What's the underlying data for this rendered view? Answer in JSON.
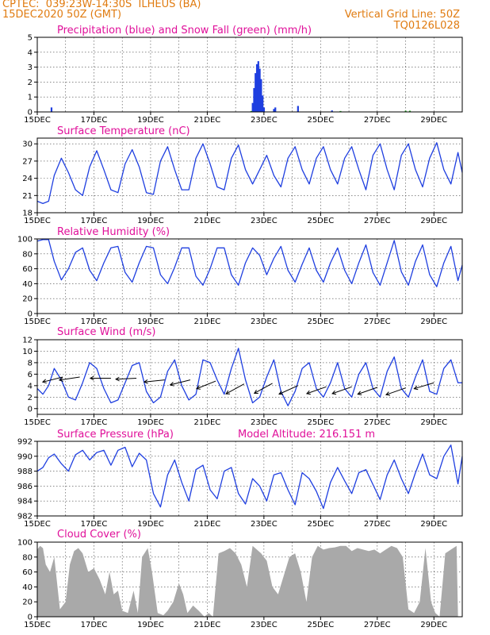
{
  "header": {
    "line1_left": "CPTEC:  039:23W-14:30S  ILHEUS (BA)",
    "line2_left": "15DEC2020 50Z (GMT)",
    "line2_right": "Vertical Grid Line: 50Z",
    "line3_right": "TQ0126L028"
  },
  "colors": {
    "header": "#e07b10",
    "titles": "#e0109a",
    "line": "#1f3fe0",
    "snow": "#22aa22",
    "cloud": "#a9a9a9",
    "arrow": "#000000"
  },
  "chart_data": [
    {
      "id": "precip",
      "type": "bar",
      "title": "Precipitation (blue) and Snow Fall (green) (mm/h)",
      "ylim": [
        0,
        5
      ],
      "yticks": [
        "0",
        "1",
        "2",
        "3",
        "4",
        "5"
      ],
      "xlim": [
        15,
        30
      ],
      "xticks": [
        "15DEC",
        "17DEC",
        "19DEC",
        "21DEC",
        "23DEC",
        "25DEC",
        "27DEC",
        "29DEC"
      ],
      "series": [
        {
          "name": "Precipitation",
          "color": "#1f3fe0",
          "x": [
            15.5,
            22.6,
            22.65,
            22.7,
            22.75,
            22.8,
            22.85,
            22.9,
            22.95,
            23.0,
            23.35,
            23.4,
            24.2,
            25.4
          ],
          "values": [
            0.3,
            0.6,
            1.6,
            2.6,
            3.2,
            3.4,
            2.9,
            2.2,
            1.1,
            0.3,
            0.2,
            0.3,
            0.4,
            0.1
          ]
        },
        {
          "name": "Snow Fall",
          "color": "#22aa22",
          "x": [
            22.55,
            25.7,
            28.0,
            28.15
          ],
          "values": [
            0.06,
            0.06,
            0.08,
            0.08
          ]
        }
      ]
    },
    {
      "id": "temp",
      "type": "line",
      "title": "Surface Temperature (nC)",
      "ylim": [
        18,
        31
      ],
      "yticks": [
        "18",
        "21",
        "24",
        "27",
        "30"
      ],
      "ytick_values": [
        18,
        21,
        24,
        27,
        30
      ],
      "xlim": [
        15,
        30
      ],
      "xticks": [
        "15DEC",
        "17DEC",
        "19DEC",
        "21DEC",
        "23DEC",
        "25DEC",
        "27DEC",
        "29DEC"
      ],
      "x": [
        15.0,
        15.2,
        15.4,
        15.6,
        15.85,
        16.1,
        16.35,
        16.6,
        16.85,
        17.1,
        17.35,
        17.6,
        17.85,
        18.1,
        18.35,
        18.6,
        18.85,
        19.1,
        19.35,
        19.6,
        19.85,
        20.1,
        20.35,
        20.6,
        20.85,
        21.1,
        21.35,
        21.6,
        21.85,
        22.1,
        22.35,
        22.6,
        22.85,
        23.1,
        23.35,
        23.6,
        23.85,
        24.1,
        24.35,
        24.6,
        24.85,
        25.1,
        25.35,
        25.6,
        25.85,
        26.1,
        26.35,
        26.6,
        26.85,
        27.1,
        27.35,
        27.6,
        27.85,
        28.1,
        28.35,
        28.6,
        28.85,
        29.1,
        29.35,
        29.6,
        29.85,
        30.0
      ],
      "series": [
        {
          "values": [
            20,
            19.6,
            20,
            24.5,
            27.5,
            25,
            22,
            21,
            26,
            28.8,
            25.5,
            22,
            21.5,
            26.5,
            29,
            26,
            21.5,
            21.2,
            27,
            29.5,
            25.5,
            22,
            22,
            27.5,
            30,
            26.5,
            22.5,
            22,
            27.5,
            29.8,
            25.5,
            23,
            25.5,
            28,
            24.5,
            22.5,
            27.5,
            29.5,
            25.5,
            23,
            27.5,
            29.5,
            25.5,
            23,
            27.5,
            29.5,
            25.5,
            22,
            28,
            30,
            25.5,
            22,
            28,
            30,
            25.5,
            22.5,
            27.5,
            30.2,
            25.5,
            23,
            28.5,
            25
          ]
        }
      ]
    },
    {
      "id": "rh",
      "type": "line",
      "title": "Relative Humidity (%)",
      "ylim": [
        0,
        100
      ],
      "yticks": [
        "0",
        "20",
        "40",
        "60",
        "80",
        "100"
      ],
      "ytick_values": [
        0,
        20,
        40,
        60,
        80,
        100
      ],
      "xlim": [
        15,
        30
      ],
      "xticks": [
        "15DEC",
        "17DEC",
        "19DEC",
        "21DEC",
        "23DEC",
        "25DEC",
        "27DEC",
        "29DEC"
      ],
      "x": [
        15.0,
        15.2,
        15.4,
        15.6,
        15.85,
        16.1,
        16.35,
        16.6,
        16.85,
        17.1,
        17.35,
        17.6,
        17.85,
        18.1,
        18.35,
        18.6,
        18.85,
        19.1,
        19.35,
        19.6,
        19.85,
        20.1,
        20.35,
        20.6,
        20.85,
        21.1,
        21.35,
        21.6,
        21.85,
        22.1,
        22.35,
        22.6,
        22.85,
        23.1,
        23.35,
        23.6,
        23.85,
        24.1,
        24.35,
        24.6,
        24.85,
        25.1,
        25.35,
        25.6,
        25.85,
        26.1,
        26.35,
        26.6,
        26.85,
        27.1,
        27.35,
        27.6,
        27.85,
        28.1,
        28.35,
        28.6,
        28.85,
        29.1,
        29.35,
        29.6,
        29.85,
        30.0
      ],
      "series": [
        {
          "values": [
            97,
            99,
            99,
            70,
            45,
            60,
            82,
            88,
            58,
            44,
            68,
            88,
            90,
            55,
            42,
            68,
            90,
            88,
            52,
            40,
            62,
            88,
            88,
            50,
            38,
            60,
            88,
            88,
            52,
            38,
            68,
            88,
            78,
            52,
            74,
            90,
            58,
            42,
            66,
            88,
            58,
            42,
            68,
            88,
            58,
            40,
            68,
            92,
            55,
            38,
            68,
            98,
            56,
            38,
            70,
            92,
            52,
            36,
            68,
            90,
            44,
            65
          ]
        }
      ]
    },
    {
      "id": "wind",
      "type": "line",
      "title": "Surface Wind (m/s)",
      "ylim": [
        -1,
        12
      ],
      "yticks": [
        "0",
        "2",
        "4",
        "6",
        "8",
        "10",
        "12"
      ],
      "ytick_values": [
        0,
        2,
        4,
        6,
        8,
        10,
        12
      ],
      "xlim": [
        15,
        30
      ],
      "xticks": [
        "15DEC",
        "17DEC",
        "19DEC",
        "21DEC",
        "23DEC",
        "25DEC",
        "27DEC",
        "29DEC"
      ],
      "x": [
        15.0,
        15.2,
        15.4,
        15.6,
        15.85,
        16.1,
        16.35,
        16.6,
        16.85,
        17.1,
        17.35,
        17.6,
        17.85,
        18.1,
        18.35,
        18.6,
        18.85,
        19.1,
        19.35,
        19.6,
        19.85,
        20.1,
        20.35,
        20.6,
        20.85,
        21.1,
        21.35,
        21.6,
        21.85,
        22.1,
        22.35,
        22.6,
        22.85,
        23.1,
        23.35,
        23.6,
        23.85,
        24.1,
        24.35,
        24.6,
        24.85,
        25.1,
        25.35,
        25.6,
        25.85,
        26.1,
        26.35,
        26.6,
        26.85,
        27.1,
        27.35,
        27.6,
        27.85,
        28.1,
        28.35,
        28.6,
        28.85,
        29.1,
        29.35,
        29.6,
        29.85,
        30.0
      ],
      "series": [
        {
          "values": [
            3.5,
            2.5,
            4.0,
            7.0,
            5.0,
            2.0,
            1.5,
            4.5,
            8.0,
            7.0,
            3.5,
            1.0,
            1.5,
            4.5,
            7.5,
            8.0,
            3.0,
            1.0,
            2.0,
            6.5,
            8.5,
            4.0,
            1.5,
            2.5,
            8.5,
            8.0,
            5.0,
            2.5,
            7.0,
            10.5,
            5.0,
            1.0,
            2.0,
            5.5,
            8.5,
            3.0,
            0.5,
            3.0,
            7.0,
            8.0,
            3.5,
            2.0,
            4.5,
            8.0,
            3.5,
            2.0,
            6.0,
            8.0,
            3.5,
            2.0,
            6.5,
            9.0,
            3.5,
            2.0,
            5.5,
            8.5,
            3.0,
            2.5,
            7.0,
            8.5,
            4.5,
            4.5
          ]
        }
      ],
      "arrows": [
        {
          "x": 15.9,
          "y": 5.5,
          "dx": -1,
          "dy": -0.25
        },
        {
          "x": 16.5,
          "y": 5.5,
          "dx": -1,
          "dy": -0.15
        },
        {
          "x": 17.6,
          "y": 5.3,
          "dx": -1,
          "dy": 0.0
        },
        {
          "x": 18.5,
          "y": 5.3,
          "dx": -1,
          "dy": -0.05
        },
        {
          "x": 19.5,
          "y": 5.0,
          "dx": -1,
          "dy": -0.1
        },
        {
          "x": 20.4,
          "y": 5.0,
          "dx": -1,
          "dy": -0.25
        },
        {
          "x": 21.3,
          "y": 4.8,
          "dx": -1,
          "dy": -0.4
        },
        {
          "x": 22.3,
          "y": 4.3,
          "dx": -1,
          "dy": -0.55
        },
        {
          "x": 23.3,
          "y": 4.4,
          "dx": -1,
          "dy": -0.55
        },
        {
          "x": 24.2,
          "y": 4.0,
          "dx": -1,
          "dy": -0.45
        },
        {
          "x": 25.2,
          "y": 3.8,
          "dx": -1,
          "dy": -0.35
        },
        {
          "x": 26.1,
          "y": 3.8,
          "dx": -1,
          "dy": -0.35
        },
        {
          "x": 27.0,
          "y": 3.7,
          "dx": -1,
          "dy": -0.35
        },
        {
          "x": 28.0,
          "y": 3.6,
          "dx": -1,
          "dy": -0.35
        },
        {
          "x": 29.0,
          "y": 4.5,
          "dx": -1,
          "dy": -0.3
        }
      ]
    },
    {
      "id": "pres",
      "type": "line",
      "title": "Surface Pressure (hPa)",
      "subtitle": "Model Altitude: 216.151 m",
      "ylim": [
        982,
        992
      ],
      "yticks": [
        "982",
        "984",
        "986",
        "988",
        "990",
        "992"
      ],
      "ytick_values": [
        982,
        984,
        986,
        988,
        990,
        992
      ],
      "xlim": [
        15,
        30
      ],
      "xticks": [
        "15DEC",
        "17DEC",
        "19DEC",
        "21DEC",
        "23DEC",
        "25DEC",
        "27DEC",
        "29DEC"
      ],
      "x": [
        15.0,
        15.2,
        15.4,
        15.6,
        15.85,
        16.1,
        16.35,
        16.6,
        16.85,
        17.1,
        17.35,
        17.6,
        17.85,
        18.1,
        18.35,
        18.6,
        18.85,
        19.1,
        19.35,
        19.6,
        19.85,
        20.1,
        20.35,
        20.6,
        20.85,
        21.1,
        21.35,
        21.6,
        21.85,
        22.1,
        22.35,
        22.6,
        22.85,
        23.1,
        23.35,
        23.6,
        23.85,
        24.1,
        24.35,
        24.6,
        24.85,
        25.1,
        25.35,
        25.6,
        25.85,
        26.1,
        26.35,
        26.6,
        26.85,
        27.1,
        27.35,
        27.6,
        27.85,
        28.1,
        28.35,
        28.6,
        28.85,
        29.1,
        29.35,
        29.6,
        29.85,
        30.0
      ],
      "series": [
        {
          "values": [
            988,
            988.5,
            989.8,
            990.3,
            989,
            988,
            990.2,
            990.8,
            989.5,
            990.5,
            990.8,
            988.8,
            990.8,
            991.2,
            988.6,
            990.4,
            989.5,
            985,
            983.2,
            987.5,
            989.5,
            986.5,
            984,
            988.2,
            988.8,
            985.5,
            984.3,
            988,
            988.5,
            985,
            983.6,
            987,
            986,
            984,
            987.5,
            987.8,
            985.5,
            983.5,
            987.8,
            987,
            985.3,
            983,
            986.5,
            988.5,
            986.7,
            985,
            987.8,
            988.2,
            986.2,
            984.2,
            987.5,
            989.5,
            987,
            985,
            987.8,
            990.3,
            987.5,
            987,
            990,
            991.5,
            986.3,
            990
          ]
        }
      ]
    },
    {
      "id": "cloud",
      "type": "area",
      "title": "Cloud Cover (%)",
      "ylim": [
        0,
        100
      ],
      "yticks": [
        "0",
        "20",
        "40",
        "60",
        "80",
        "100"
      ],
      "ytick_values": [
        0,
        20,
        40,
        60,
        80,
        100
      ],
      "xlim": [
        15,
        30
      ],
      "xticks": [
        "15DEC",
        "17DEC",
        "19DEC",
        "21DEC",
        "23DEC",
        "25DEC",
        "27DEC",
        "29DEC"
      ],
      "x": [
        15.0,
        15.1,
        15.2,
        15.3,
        15.45,
        15.6,
        15.8,
        16.0,
        16.15,
        16.3,
        16.45,
        16.6,
        16.8,
        17.0,
        17.2,
        17.4,
        17.55,
        17.7,
        17.85,
        18.0,
        18.2,
        18.4,
        18.55,
        18.7,
        18.9,
        19.05,
        19.25,
        19.45,
        19.6,
        19.8,
        20.0,
        20.15,
        20.3,
        20.5,
        20.7,
        20.9,
        21.05,
        21.2,
        21.4,
        21.6,
        21.8,
        22.0,
        22.2,
        22.4,
        22.6,
        22.75,
        22.9,
        23.1,
        23.3,
        23.5,
        23.7,
        23.9,
        24.1,
        24.3,
        24.5,
        24.7,
        24.9,
        25.1,
        25.3,
        25.5,
        25.7,
        25.9,
        26.1,
        26.3,
        26.5,
        26.7,
        26.9,
        27.1,
        27.3,
        27.5,
        27.7,
        27.9,
        28.1,
        28.3,
        28.5,
        28.7,
        28.9,
        29.05,
        29.2,
        29.4,
        29.6,
        29.8,
        29.85
      ],
      "series": [
        {
          "values": [
            90,
            95,
            92,
            70,
            60,
            80,
            10,
            20,
            70,
            88,
            92,
            85,
            60,
            65,
            50,
            30,
            60,
            30,
            35,
            8,
            5,
            35,
            5,
            80,
            92,
            60,
            5,
            2,
            8,
            20,
            45,
            30,
            5,
            15,
            8,
            0,
            5,
            0,
            85,
            88,
            92,
            85,
            70,
            40,
            95,
            90,
            85,
            75,
            40,
            30,
            55,
            80,
            85,
            60,
            20,
            80,
            95,
            90,
            92,
            93,
            95,
            95,
            88,
            92,
            90,
            88,
            90,
            85,
            90,
            95,
            92,
            80,
            10,
            5,
            20,
            92,
            20,
            5,
            0,
            85,
            90,
            95,
            0
          ]
        }
      ]
    }
  ]
}
